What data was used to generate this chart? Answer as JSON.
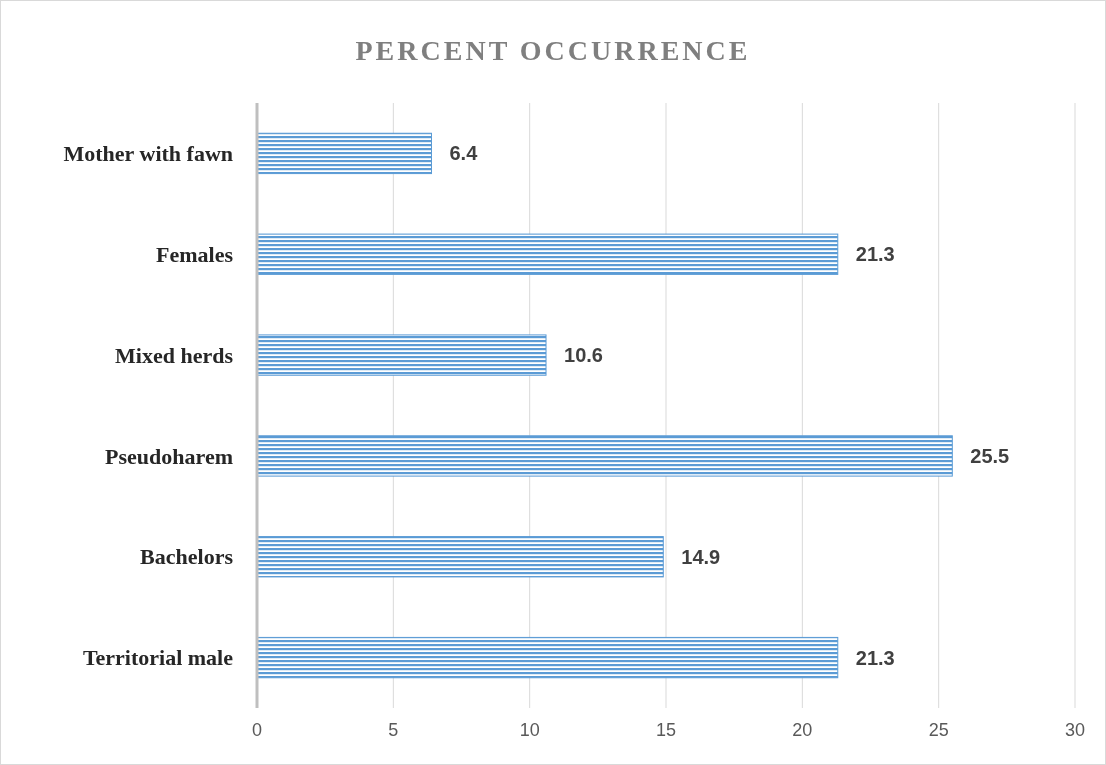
{
  "chart_data": {
    "type": "bar",
    "orientation": "horizontal",
    "title": "PERCENT OCCURRENCE",
    "categories": [
      "Mother with fawn",
      "Females",
      "Mixed herds",
      "Pseudoharem",
      "Bachelors",
      "Territorial male"
    ],
    "values": [
      6.4,
      21.3,
      10.6,
      25.5,
      14.9,
      21.3
    ],
    "color": "#5b9bd5",
    "xlim": [
      0,
      30
    ],
    "xticks": [
      0,
      5,
      10,
      15,
      20,
      25,
      30
    ],
    "grid": "x",
    "data_labels": true
  }
}
